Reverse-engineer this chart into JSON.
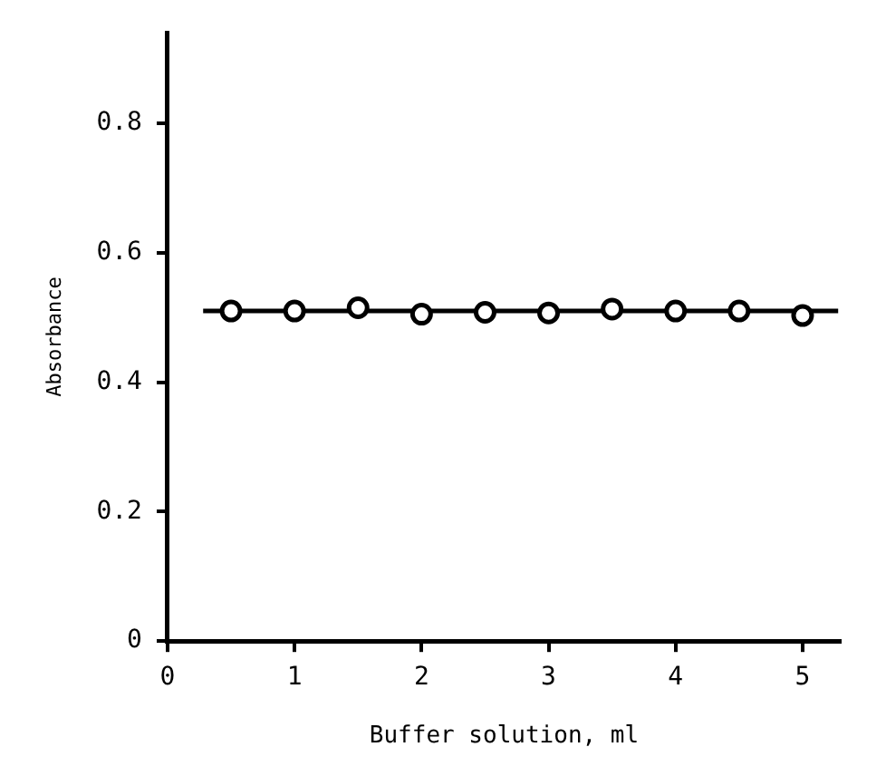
{
  "chart_data": {
    "type": "scatter",
    "xlabel": "Buffer solution, ml",
    "ylabel": "Absorbance",
    "xlim": [
      0,
      5.3
    ],
    "xticks": [
      0,
      1,
      2,
      3,
      4,
      5
    ],
    "ylim": [
      0,
      0.94
    ],
    "yticks": [
      0,
      0.2,
      0.4,
      0.6,
      0.8
    ],
    "grid": false,
    "legend": false,
    "marker": "circle",
    "series": [
      {
        "color": "#000000",
        "x": [
          0.5,
          1,
          1.5,
          2,
          2.5,
          3,
          3.5,
          4,
          4.5,
          5
        ],
        "values": [
          0.51,
          0.51,
          0.515,
          0.505,
          0.508,
          0.507,
          0.513,
          0.51,
          0.51,
          0.503
        ]
      },
      {
        "type": "line",
        "color": "#000000",
        "marker": "none",
        "line_style": "solid",
        "x": [
          0.28,
          5.28
        ],
        "values": [
          0.51,
          0.51
        ]
      }
    ]
  }
}
